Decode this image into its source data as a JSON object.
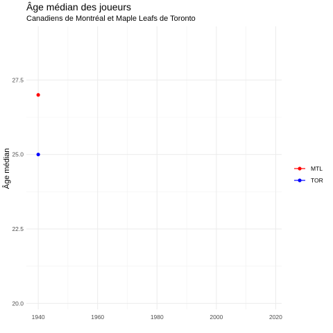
{
  "chart_data": {
    "type": "line",
    "title": "Âge médian des joueurs",
    "subtitle": "Canadiens de Montréal et Maple Leafs de Toronto",
    "xlabel": "",
    "ylabel": "Âge médian",
    "xlim": [
      1936,
      2022
    ],
    "ylim": [
      19.8,
      29.3
    ],
    "x_ticks": [
      1940,
      1960,
      1980,
      2000,
      2020
    ],
    "y_ticks": [
      20.0,
      22.5,
      25.0,
      27.5
    ],
    "x_tick_labels": [
      "1940",
      "1960",
      "1980",
      "2000",
      "2020"
    ],
    "y_tick_labels": [
      "20.0",
      "22.5",
      "25.0",
      "27.5"
    ],
    "grid": true,
    "legend_position": "right",
    "series": [
      {
        "name": "MTL",
        "color": "#ff0000",
        "x": [
          1940
        ],
        "y": [
          27.0
        ]
      },
      {
        "name": "TOR",
        "color": "#0000ff",
        "x": [
          1940
        ],
        "y": [
          25.0
        ]
      }
    ]
  }
}
